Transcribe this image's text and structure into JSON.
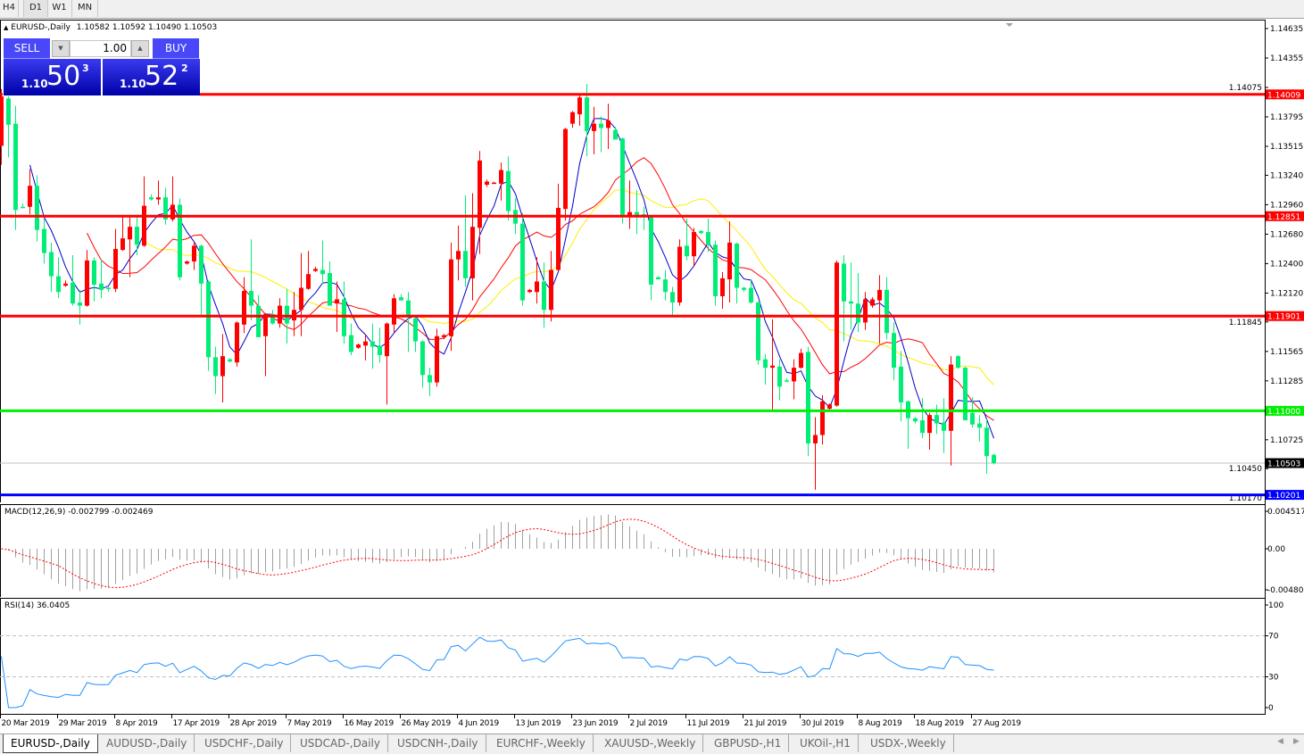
{
  "toolbar": {
    "timeframes": [
      "H4",
      "D1",
      "W1",
      "MN"
    ],
    "active": "D1"
  },
  "header": {
    "title": "EURUSD-,Daily",
    "ohlc": "1.10582 1.10592 1.10490 1.10503"
  },
  "trade": {
    "sell_label": "SELL",
    "buy_label": "BUY",
    "lot": "1.00",
    "sell": {
      "big": "1.10",
      "pips": "50",
      "frac": "3"
    },
    "buy": {
      "big": "1.10",
      "pips": "52",
      "frac": "2"
    }
  },
  "tabs": [
    "EURUSD-,Daily",
    "AUDUSD-,Daily",
    "USDCHF-,Daily",
    "USDCAD-,Daily",
    "USDCNH-,Daily",
    "EURCHF-,Weekly",
    "XAUUSD-,Weekly",
    "GBPUSD-,H1",
    "UKOil-,H1",
    "USDX-,Weekly"
  ],
  "active_tab": "EURUSD-,Daily",
  "colors": {
    "bull": "#ff0000",
    "bear": "#00ee77",
    "ma_fast": "#0000cc",
    "ma_mid": "#ff0000",
    "ma_slow": "#ffee00",
    "macd_hist": "#a0a0a0",
    "macd_signal": "#ff0000",
    "rsi": "#1e90ff"
  },
  "chart_data": {
    "type": "candlestick",
    "symbol": "EURUSD-,Daily",
    "price_ticks": [
      "1.14635",
      "1.14355",
      "1.14075",
      "1.13795",
      "1.13515",
      "1.13240",
      "1.12960",
      "1.12680",
      "1.12400",
      "1.12120",
      "1.11845",
      "1.11565",
      "1.11285",
      "1.10725",
      "1.10450",
      "1.10170"
    ],
    "date_labels": [
      "20 Mar 2019",
      "29 Mar 2019",
      "8 Apr 2019",
      "17 Apr 2019",
      "28 Apr 2019",
      "7 May 2019",
      "16 May 2019",
      "26 May 2019",
      "4 Jun 2019",
      "13 Jun 2019",
      "23 Jun 2019",
      "2 Jul 2019",
      "11 Jul 2019",
      "21 Jul 2019",
      "30 Jul 2019",
      "8 Aug 2019",
      "18 Aug 2019",
      "27 Aug 2019"
    ],
    "levels": [
      {
        "price": 1.14009,
        "label": "1.14009",
        "color": "#ff0000"
      },
      {
        "price": 1.12851,
        "label": "1.12851",
        "color": "#ff0000"
      },
      {
        "price": 1.11901,
        "label": "1.11901",
        "color": "#ff0000"
      },
      {
        "price": 1.11,
        "label": "1.11000",
        "color": "#00ee00"
      },
      {
        "price": 1.10201,
        "label": "1.10201",
        "color": "#0000ff"
      }
    ],
    "bid": {
      "price": 1.10503,
      "label": "1.10503"
    },
    "ohlc": [
      [
        1.1352,
        1.1406,
        1.1334,
        1.1399
      ],
      [
        1.1397,
        1.1399,
        1.1341,
        1.1372
      ],
      [
        1.1373,
        1.139,
        1.1272,
        1.1291
      ],
      [
        1.1294,
        1.1297,
        1.1293,
        1.1293
      ],
      [
        1.1294,
        1.133,
        1.1287,
        1.1314
      ],
      [
        1.1314,
        1.1324,
        1.1261,
        1.1272
      ],
      [
        1.1273,
        1.1283,
        1.124,
        1.125
      ],
      [
        1.1251,
        1.126,
        1.1213,
        1.1228
      ],
      [
        1.1228,
        1.1246,
        1.1207,
        1.1213
      ],
      [
        1.1219,
        1.1224,
        1.1218,
        1.1221
      ],
      [
        1.1222,
        1.1248,
        1.12,
        1.1202
      ],
      [
        1.1203,
        1.1215,
        1.1182,
        1.12
      ],
      [
        1.12,
        1.1253,
        1.1199,
        1.1243
      ],
      [
        1.1243,
        1.1246,
        1.1204,
        1.122
      ],
      [
        1.1221,
        1.1244,
        1.1207,
        1.1215
      ],
      [
        1.1217,
        1.1218,
        1.1213,
        1.1216
      ],
      [
        1.1216,
        1.1273,
        1.1213,
        1.1254
      ],
      [
        1.1253,
        1.1284,
        1.1252,
        1.1264
      ],
      [
        1.1263,
        1.1286,
        1.1227,
        1.1275
      ],
      [
        1.1275,
        1.1286,
        1.1248,
        1.1258
      ],
      [
        1.1257,
        1.1323,
        1.1256,
        1.1295
      ],
      [
        1.1303,
        1.1306,
        1.13,
        1.1301
      ],
      [
        1.1301,
        1.1319,
        1.1296,
        1.1303
      ],
      [
        1.1303,
        1.1312,
        1.1277,
        1.1282
      ],
      [
        1.1282,
        1.1323,
        1.128,
        1.1296
      ],
      [
        1.1296,
        1.1302,
        1.1224,
        1.1227
      ],
      [
        1.124,
        1.1243,
        1.1239,
        1.1242
      ],
      [
        1.1242,
        1.1261,
        1.1234,
        1.1257
      ],
      [
        1.1257,
        1.1258,
        1.119,
        1.1221
      ],
      [
        1.1223,
        1.1224,
        1.1138,
        1.1151
      ],
      [
        1.1151,
        1.1161,
        1.1116,
        1.1133
      ],
      [
        1.1133,
        1.1173,
        1.1108,
        1.1152
      ],
      [
        1.1149,
        1.115,
        1.1146,
        1.1147
      ],
      [
        1.1146,
        1.1185,
        1.1142,
        1.1184
      ],
      [
        1.1182,
        1.1227,
        1.1174,
        1.1214
      ],
      [
        1.1214,
        1.1263,
        1.1186,
        1.12
      ],
      [
        1.12,
        1.121,
        1.117,
        1.117
      ],
      [
        1.1171,
        1.1193,
        1.1133,
        1.1192
      ],
      [
        1.1192,
        1.1196,
        1.1182,
        1.1183
      ],
      [
        1.1183,
        1.1207,
        1.1179,
        1.12
      ],
      [
        1.12,
        1.1216,
        1.1164,
        1.1183
      ],
      [
        1.1186,
        1.1213,
        1.1171,
        1.1196
      ],
      [
        1.1196,
        1.125,
        1.1171,
        1.1217
      ],
      [
        1.1216,
        1.1252,
        1.1215,
        1.123
      ],
      [
        1.1233,
        1.1237,
        1.1232,
        1.1235
      ],
      [
        1.1234,
        1.1262,
        1.1221,
        1.123
      ],
      [
        1.1231,
        1.1242,
        1.12,
        1.12
      ],
      [
        1.1202,
        1.1223,
        1.1175,
        1.1206
      ],
      [
        1.1206,
        1.1223,
        1.1164,
        1.1171
      ],
      [
        1.1172,
        1.1183,
        1.1153,
        1.1156
      ],
      [
        1.116,
        1.1164,
        1.1159,
        1.1163
      ],
      [
        1.1162,
        1.1173,
        1.1148,
        1.1166
      ],
      [
        1.1166,
        1.1183,
        1.114,
        1.1161
      ],
      [
        1.1162,
        1.1179,
        1.1146,
        1.1153
      ],
      [
        1.1152,
        1.1184,
        1.1106,
        1.1183
      ],
      [
        1.1182,
        1.1211,
        1.1174,
        1.1207
      ],
      [
        1.1208,
        1.1211,
        1.1205,
        1.1205
      ],
      [
        1.1205,
        1.1213,
        1.1156,
        1.1191
      ],
      [
        1.1188,
        1.1191,
        1.1156,
        1.1166
      ],
      [
        1.1166,
        1.1167,
        1.1122,
        1.1134
      ],
      [
        1.1134,
        1.1141,
        1.1114,
        1.1127
      ],
      [
        1.1127,
        1.1178,
        1.1123,
        1.1171
      ],
      [
        1.117,
        1.1173,
        1.1168,
        1.1172
      ],
      [
        1.1171,
        1.126,
        1.1157,
        1.1244
      ],
      [
        1.1244,
        1.1276,
        1.1224,
        1.1252
      ],
      [
        1.1252,
        1.1305,
        1.1218,
        1.1226
      ],
      [
        1.1226,
        1.1307,
        1.1205,
        1.1275
      ],
      [
        1.1274,
        1.1347,
        1.1249,
        1.1338
      ],
      [
        1.1315,
        1.132,
        1.1313,
        1.1318
      ],
      [
        1.1317,
        1.1318,
        1.1316,
        1.1317
      ],
      [
        1.1316,
        1.1336,
        1.13,
        1.1329
      ],
      [
        1.1328,
        1.1342,
        1.1281,
        1.129
      ],
      [
        1.1291,
        1.1302,
        1.1268,
        1.1278
      ],
      [
        1.1278,
        1.1288,
        1.12,
        1.1205
      ],
      [
        1.1213,
        1.1216,
        1.1212,
        1.1215
      ],
      [
        1.1213,
        1.1246,
        1.1202,
        1.1223
      ],
      [
        1.1223,
        1.1241,
        1.1179,
        1.1196
      ],
      [
        1.1196,
        1.1252,
        1.1185,
        1.1234
      ],
      [
        1.1234,
        1.1316,
        1.1233,
        1.1293
      ],
      [
        1.1292,
        1.1369,
        1.1281,
        1.1368
      ],
      [
        1.1373,
        1.1385,
        1.1369,
        1.1384
      ],
      [
        1.1382,
        1.1402,
        1.1371,
        1.1398
      ],
      [
        1.1398,
        1.1411,
        1.1342,
        1.1366
      ],
      [
        1.1366,
        1.1389,
        1.1344,
        1.1373
      ],
      [
        1.1373,
        1.138,
        1.1346,
        1.1369
      ],
      [
        1.1369,
        1.1392,
        1.1349,
        1.1376
      ],
      [
        1.1367,
        1.137,
        1.1358,
        1.1358
      ],
      [
        1.1359,
        1.136,
        1.1278,
        1.1285
      ],
      [
        1.1285,
        1.1319,
        1.1273,
        1.1289
      ],
      [
        1.1289,
        1.131,
        1.1268,
        1.1286
      ],
      [
        1.1287,
        1.1294,
        1.1272,
        1.1285
      ],
      [
        1.1284,
        1.1285,
        1.1205,
        1.122
      ],
      [
        1.1227,
        1.1228,
        1.1225,
        1.1225
      ],
      [
        1.1225,
        1.1234,
        1.1205,
        1.1213
      ],
      [
        1.1213,
        1.1218,
        1.1191,
        1.1203
      ],
      [
        1.1203,
        1.1263,
        1.12,
        1.1256
      ],
      [
        1.1257,
        1.1283,
        1.1243,
        1.1247
      ],
      [
        1.1247,
        1.1274,
        1.1237,
        1.127
      ],
      [
        1.1271,
        1.1272,
        1.1268,
        1.1269
      ],
      [
        1.127,
        1.1283,
        1.1251,
        1.1258
      ],
      [
        1.1258,
        1.1262,
        1.12,
        1.1209
      ],
      [
        1.1209,
        1.1232,
        1.1197,
        1.1226
      ],
      [
        1.1225,
        1.128,
        1.1203,
        1.126
      ],
      [
        1.1259,
        1.126,
        1.1202,
        1.1217
      ],
      [
        1.1217,
        1.1218,
        1.1213,
        1.1215
      ],
      [
        1.1217,
        1.1224,
        1.1202,
        1.1203
      ],
      [
        1.1203,
        1.1204,
        1.1144,
        1.1148
      ],
      [
        1.1149,
        1.1154,
        1.1125,
        1.1141
      ],
      [
        1.1141,
        1.1187,
        1.11,
        1.1143
      ],
      [
        1.1142,
        1.1149,
        1.111,
        1.1123
      ],
      [
        1.1129,
        1.1131,
        1.1127,
        1.1128
      ],
      [
        1.1128,
        1.1149,
        1.1111,
        1.1141
      ],
      [
        1.1141,
        1.1159,
        1.114,
        1.1155
      ],
      [
        1.1156,
        1.1161,
        1.1057,
        1.1069
      ],
      [
        1.1069,
        1.1094,
        1.1025,
        1.1077
      ],
      [
        1.1077,
        1.1115,
        1.1068,
        1.1109
      ],
      [
        1.1102,
        1.1107,
        1.1101,
        1.1106
      ],
      [
        1.1105,
        1.1243,
        1.1104,
        1.1241
      ],
      [
        1.124,
        1.1248,
        1.1166,
        1.1204
      ],
      [
        1.1204,
        1.1241,
        1.1177,
        1.1202
      ],
      [
        1.1202,
        1.1231,
        1.1175,
        1.1184
      ],
      [
        1.1184,
        1.1213,
        1.1177,
        1.1206
      ],
      [
        1.12,
        1.1208,
        1.1198,
        1.1206
      ],
      [
        1.1205,
        1.1229,
        1.1164,
        1.1215
      ],
      [
        1.1215,
        1.1227,
        1.1168,
        1.1174
      ],
      [
        1.1174,
        1.1184,
        1.1129,
        1.1141
      ],
      [
        1.1142,
        1.1157,
        1.109,
        1.1108
      ],
      [
        1.1109,
        1.111,
        1.1064,
        1.1093
      ],
      [
        1.1093,
        1.1094,
        1.1088,
        1.109
      ],
      [
        1.1091,
        1.1112,
        1.1074,
        1.1079
      ],
      [
        1.1079,
        1.1098,
        1.1063,
        1.1096
      ],
      [
        1.1096,
        1.1106,
        1.1078,
        1.1088
      ],
      [
        1.1089,
        1.1112,
        1.106,
        1.1081
      ],
      [
        1.1081,
        1.1152,
        1.1048,
        1.1144
      ],
      [
        1.1152,
        1.1153,
        1.114,
        1.1141
      ],
      [
        1.1141,
        1.1142,
        1.1091,
        1.1091
      ],
      [
        1.1098,
        1.1113,
        1.1084,
        1.1087
      ],
      [
        1.1088,
        1.1096,
        1.1071,
        1.1084
      ],
      [
        1.1084,
        1.1092,
        1.104,
        1.1057
      ],
      [
        1.10582,
        1.10592,
        1.1049,
        1.10503
      ]
    ],
    "macd": {
      "title": "MACD(12,26,9) -0.002799 -0.002469",
      "ticks": [
        "0.004517",
        "0.00",
        "-0.004806"
      ],
      "range": [
        -0.004806,
        0.004517
      ]
    },
    "rsi": {
      "title": "RSI(14) 36.0405",
      "ticks": [
        "100",
        "70",
        "30",
        "0"
      ],
      "levels": [
        70,
        30
      ],
      "range": [
        0,
        100
      ]
    }
  }
}
